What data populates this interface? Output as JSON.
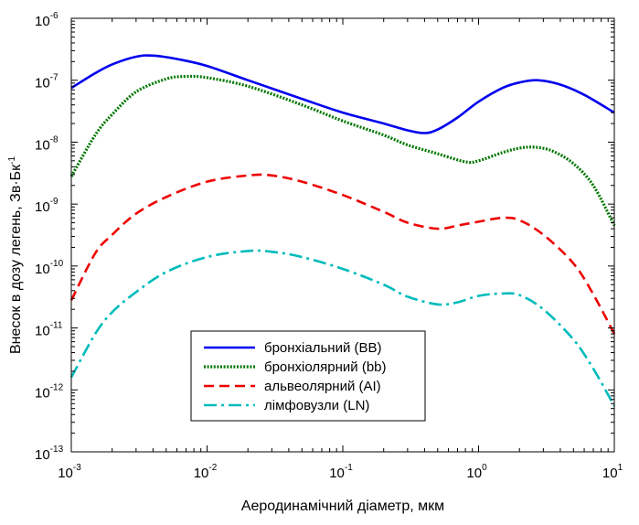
{
  "chart_data": {
    "type": "line",
    "xlabel": "Аеродинамічний діаметр, мкм",
    "ylabel": "Внесок в дозу легень, Зв·Бк",
    "ylabel_exp": "-1",
    "xscale": "log",
    "yscale": "log",
    "xlim": [
      0.001,
      10
    ],
    "ylim": [
      1e-13,
      1e-06
    ],
    "x_ticks": [
      {
        "base": "10",
        "exp": "-3",
        "value": 0.001
      },
      {
        "base": "10",
        "exp": "-2",
        "value": 0.01
      },
      {
        "base": "10",
        "exp": "-1",
        "value": 0.1
      },
      {
        "base": "10",
        "exp": "0",
        "value": 1
      },
      {
        "base": "10",
        "exp": "1",
        "value": 10
      }
    ],
    "y_ticks": [
      {
        "base": "10",
        "exp": "-6",
        "value": 1e-06
      },
      {
        "base": "10",
        "exp": "-7",
        "value": 1e-07
      },
      {
        "base": "10",
        "exp": "-8",
        "value": 1e-08
      },
      {
        "base": "10",
        "exp": "-9",
        "value": 1e-09
      },
      {
        "base": "10",
        "exp": "-10",
        "value": 1e-10
      },
      {
        "base": "10",
        "exp": "-11",
        "value": 1e-11
      },
      {
        "base": "10",
        "exp": "-12",
        "value": 1e-12
      },
      {
        "base": "10",
        "exp": "-13",
        "value": 1e-13
      }
    ],
    "legend_position": "bottom-center",
    "grid": false,
    "series": [
      {
        "name": "бронхіальний (BB)",
        "color": "#0000ee",
        "style": "solid",
        "x": [
          0.001,
          0.0015,
          0.002,
          0.003,
          0.004,
          0.006,
          0.01,
          0.02,
          0.05,
          0.1,
          0.2,
          0.3,
          0.4,
          0.5,
          0.7,
          1.0,
          1.5,
          2.0,
          2.7,
          4.0,
          6.0,
          10.0
        ],
        "y": [
          7.5e-08,
          1.3e-07,
          1.8e-07,
          2.4e-07,
          2.5e-07,
          2.2e-07,
          1.7e-07,
          1e-07,
          5e-08,
          3e-08,
          2e-08,
          1.55e-08,
          1.4e-08,
          1.6e-08,
          2.5e-08,
          4.5e-08,
          7.5e-08,
          9.2e-08,
          1e-07,
          8.5e-08,
          5.8e-08,
          3e-08
        ]
      },
      {
        "name": "бронхіолярний (bb)",
        "color": "#007700",
        "style": "dotted",
        "x": [
          0.001,
          0.0015,
          0.002,
          0.003,
          0.005,
          0.007,
          0.01,
          0.02,
          0.05,
          0.1,
          0.2,
          0.3,
          0.5,
          0.8,
          1.0,
          1.5,
          2.0,
          2.6,
          3.5,
          5.0,
          7.0,
          10.0
        ],
        "y": [
          2.8e-09,
          1.3e-08,
          2.8e-08,
          6.5e-08,
          1.05e-07,
          1.15e-07,
          1.1e-07,
          8e-08,
          4e-08,
          2.2e-08,
          1.3e-08,
          9e-09,
          6.5e-09,
          4.8e-09,
          5e-09,
          6.8e-09,
          8e-09,
          8.3e-09,
          7.2e-09,
          4.5e-09,
          2e-09,
          4.5e-10
        ]
      },
      {
        "name": "альвеолярний (AI)",
        "color": "#ee0000",
        "style": "dashed",
        "x": [
          0.001,
          0.0015,
          0.002,
          0.003,
          0.005,
          0.01,
          0.02,
          0.03,
          0.05,
          0.1,
          0.2,
          0.3,
          0.5,
          0.7,
          1.0,
          1.5,
          2.0,
          3.0,
          5.0,
          7.0,
          10.0
        ],
        "y": [
          2.8e-11,
          1.6e-10,
          3.2e-10,
          7e-10,
          1.3e-09,
          2.3e-09,
          2.9e-09,
          2.9e-09,
          2.3e-09,
          1.4e-09,
          7.5e-10,
          5e-10,
          4e-10,
          4.5e-10,
          5.2e-10,
          6e-10,
          5.5e-10,
          3.2e-10,
          1.1e-10,
          3.5e-11,
          8e-12
        ]
      },
      {
        "name": "лімфовузли (LN)",
        "color": "#00bbbb",
        "style": "dashdot",
        "x": [
          0.001,
          0.0015,
          0.002,
          0.003,
          0.005,
          0.01,
          0.02,
          0.03,
          0.05,
          0.1,
          0.2,
          0.3,
          0.5,
          0.7,
          1.0,
          1.5,
          2.0,
          3.0,
          5.0,
          7.0,
          10.0
        ],
        "y": [
          1.6e-12,
          8e-12,
          1.8e-11,
          3.8e-11,
          8e-11,
          1.4e-10,
          1.75e-10,
          1.7e-10,
          1.4e-10,
          9e-11,
          5e-11,
          3.2e-11,
          2.4e-11,
          2.6e-11,
          3.3e-11,
          3.6e-11,
          3.4e-11,
          2e-11,
          6.5e-12,
          2.2e-12,
          5.5e-13
        ]
      }
    ]
  }
}
